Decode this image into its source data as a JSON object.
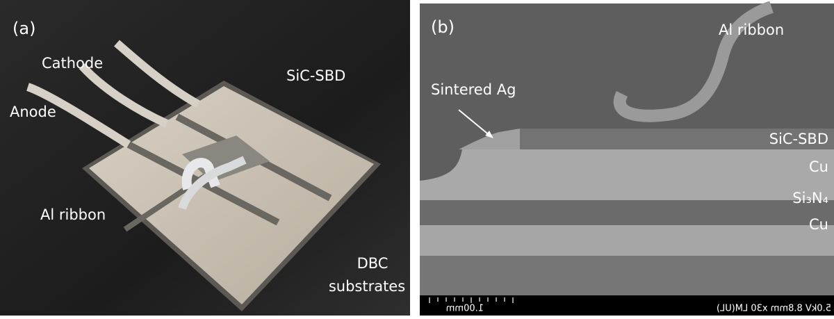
{
  "panel_a": {
    "label": "(a)",
    "annotations": {
      "cathode": "Cathode",
      "anode": "Anode",
      "chip": "SiC-SBD",
      "ribbon": "Al ribbon",
      "substrate_line1": "DBC",
      "substrate_line2": "substrates"
    }
  },
  "panel_b": {
    "label": "(b)",
    "annotations": {
      "ribbon": "Al ribbon",
      "sinter": "Sintered Ag",
      "chip": "SiC-SBD",
      "cu_top": "Cu",
      "ceramic": "Si₃N₄",
      "cu_bottom": "Cu"
    },
    "scale_bar": "1.00mm",
    "sem_info": "5.0kV 8.8mm x30 LM(UL)"
  }
}
